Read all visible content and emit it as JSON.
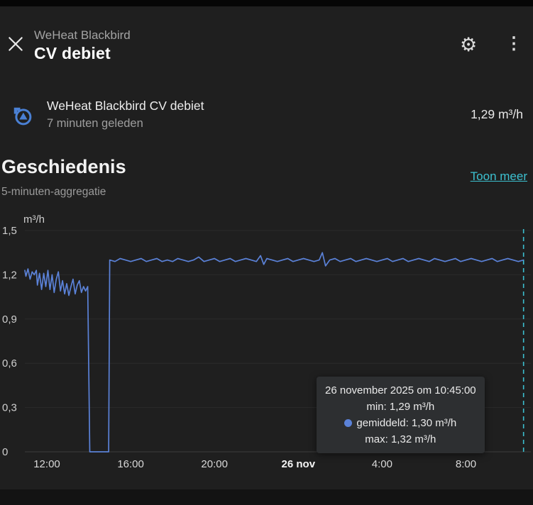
{
  "header": {
    "subtitle": "WeHeat Blackbird",
    "title": "CV debiet"
  },
  "icons": {
    "gear": "⚙",
    "kebab": "⋮"
  },
  "sensor": {
    "name": "WeHeat Blackbird CV debiet",
    "last_updated": "7 minuten geleden",
    "value": "1,29 m³/h"
  },
  "history": {
    "title": "Geschiedenis",
    "subtitle": "5-minuten-aggregatie",
    "link": "Toon meer"
  },
  "tooltip": {
    "date": "26 november 2025 om 10:45:00",
    "min": "min: 1,29 m³/h",
    "avg": "gemiddeld: 1,30 m³/h",
    "max": "max: 1,32 m³/h"
  },
  "colors": {
    "accent": "#3cc0d0",
    "chart_line": "#5b82d8",
    "icon_blue": "#4a80d4"
  },
  "chart_data": {
    "type": "line",
    "title": "Geschiedenis",
    "ylabel": "m³/h",
    "xlabel": "",
    "ylim": [
      0,
      1.5
    ],
    "xlim": [
      10.95,
      35.1
    ],
    "yticks": [
      "0",
      "0,3",
      "0,6",
      "0,9",
      "1,2",
      "1,5"
    ],
    "ytick_values": [
      0,
      0.3,
      0.6,
      0.9,
      1.2,
      1.5
    ],
    "xticks": [
      {
        "t": 12,
        "label": "12:00",
        "bold": false
      },
      {
        "t": 16,
        "label": "16:00",
        "bold": false
      },
      {
        "t": 20,
        "label": "20:00",
        "bold": false
      },
      {
        "t": 24,
        "label": "26 nov",
        "bold": true
      },
      {
        "t": 28,
        "label": "4:00",
        "bold": false
      },
      {
        "t": 32,
        "label": "8:00",
        "bold": false
      }
    ],
    "cursor_t": 34.75,
    "grid": true,
    "legend": "none",
    "series": [
      {
        "name": "CV debiet",
        "color": "#5b82d8",
        "points": [
          [
            10.95,
            1.23
          ],
          [
            11.0,
            1.19
          ],
          [
            11.1,
            1.24
          ],
          [
            11.2,
            1.17
          ],
          [
            11.3,
            1.22
          ],
          [
            11.4,
            1.2
          ],
          [
            11.5,
            1.23
          ],
          [
            11.55,
            1.13
          ],
          [
            11.65,
            1.21
          ],
          [
            11.75,
            1.1
          ],
          [
            11.85,
            1.21
          ],
          [
            11.95,
            1.12
          ],
          [
            12.05,
            1.23
          ],
          [
            12.15,
            1.1
          ],
          [
            12.25,
            1.2
          ],
          [
            12.35,
            1.08
          ],
          [
            12.45,
            1.17
          ],
          [
            12.55,
            1.22
          ],
          [
            12.65,
            1.09
          ],
          [
            12.75,
            1.16
          ],
          [
            12.85,
            1.07
          ],
          [
            12.95,
            1.14
          ],
          [
            13.05,
            1.06
          ],
          [
            13.15,
            1.12
          ],
          [
            13.25,
            1.17
          ],
          [
            13.35,
            1.07
          ],
          [
            13.45,
            1.13
          ],
          [
            13.55,
            1.16
          ],
          [
            13.65,
            1.08
          ],
          [
            13.75,
            1.12
          ],
          [
            13.85,
            1.09
          ],
          [
            13.95,
            1.12
          ],
          [
            14.05,
            0
          ],
          [
            14.3,
            0
          ],
          [
            14.6,
            0
          ],
          [
            14.95,
            0
          ],
          [
            15.0,
            1.3
          ],
          [
            15.25,
            1.29
          ],
          [
            15.5,
            1.31
          ],
          [
            15.75,
            1.3
          ],
          [
            16.0,
            1.29
          ],
          [
            16.25,
            1.3
          ],
          [
            16.5,
            1.31
          ],
          [
            16.75,
            1.29
          ],
          [
            17.0,
            1.3
          ],
          [
            17.25,
            1.31
          ],
          [
            17.5,
            1.29
          ],
          [
            17.75,
            1.3
          ],
          [
            18.0,
            1.29
          ],
          [
            18.25,
            1.31
          ],
          [
            18.5,
            1.3
          ],
          [
            18.75,
            1.29
          ],
          [
            19.0,
            1.3
          ],
          [
            19.25,
            1.32
          ],
          [
            19.5,
            1.29
          ],
          [
            19.75,
            1.3
          ],
          [
            20.0,
            1.31
          ],
          [
            20.25,
            1.29
          ],
          [
            20.5,
            1.3
          ],
          [
            20.75,
            1.31
          ],
          [
            21.0,
            1.29
          ],
          [
            21.25,
            1.3
          ],
          [
            21.5,
            1.31
          ],
          [
            21.75,
            1.3
          ],
          [
            22.0,
            1.29
          ],
          [
            22.2,
            1.33
          ],
          [
            22.35,
            1.27
          ],
          [
            22.5,
            1.31
          ],
          [
            22.75,
            1.3
          ],
          [
            23.0,
            1.29
          ],
          [
            23.25,
            1.3
          ],
          [
            23.5,
            1.31
          ],
          [
            23.75,
            1.29
          ],
          [
            24.0,
            1.3
          ],
          [
            24.25,
            1.31
          ],
          [
            24.5,
            1.3
          ],
          [
            24.75,
            1.29
          ],
          [
            25.0,
            1.3
          ],
          [
            25.15,
            1.35
          ],
          [
            25.3,
            1.26
          ],
          [
            25.5,
            1.3
          ],
          [
            25.75,
            1.31
          ],
          [
            26.0,
            1.29
          ],
          [
            26.25,
            1.3
          ],
          [
            26.5,
            1.31
          ],
          [
            26.75,
            1.29
          ],
          [
            27.0,
            1.3
          ],
          [
            27.25,
            1.31
          ],
          [
            27.5,
            1.3
          ],
          [
            27.75,
            1.29
          ],
          [
            28.0,
            1.3
          ],
          [
            28.25,
            1.31
          ],
          [
            28.5,
            1.29
          ],
          [
            28.75,
            1.3
          ],
          [
            29.0,
            1.31
          ],
          [
            29.25,
            1.29
          ],
          [
            29.5,
            1.3
          ],
          [
            29.75,
            1.31
          ],
          [
            30.0,
            1.3
          ],
          [
            30.25,
            1.29
          ],
          [
            30.5,
            1.31
          ],
          [
            30.75,
            1.3
          ],
          [
            31.0,
            1.29
          ],
          [
            31.25,
            1.3
          ],
          [
            31.5,
            1.31
          ],
          [
            31.75,
            1.29
          ],
          [
            32.0,
            1.3
          ],
          [
            32.25,
            1.31
          ],
          [
            32.5,
            1.3
          ],
          [
            32.75,
            1.29
          ],
          [
            33.0,
            1.3
          ],
          [
            33.25,
            1.31
          ],
          [
            33.5,
            1.29
          ],
          [
            33.75,
            1.3
          ],
          [
            34.0,
            1.31
          ],
          [
            34.25,
            1.3
          ],
          [
            34.5,
            1.29
          ],
          [
            34.75,
            1.3
          ]
        ]
      }
    ]
  }
}
